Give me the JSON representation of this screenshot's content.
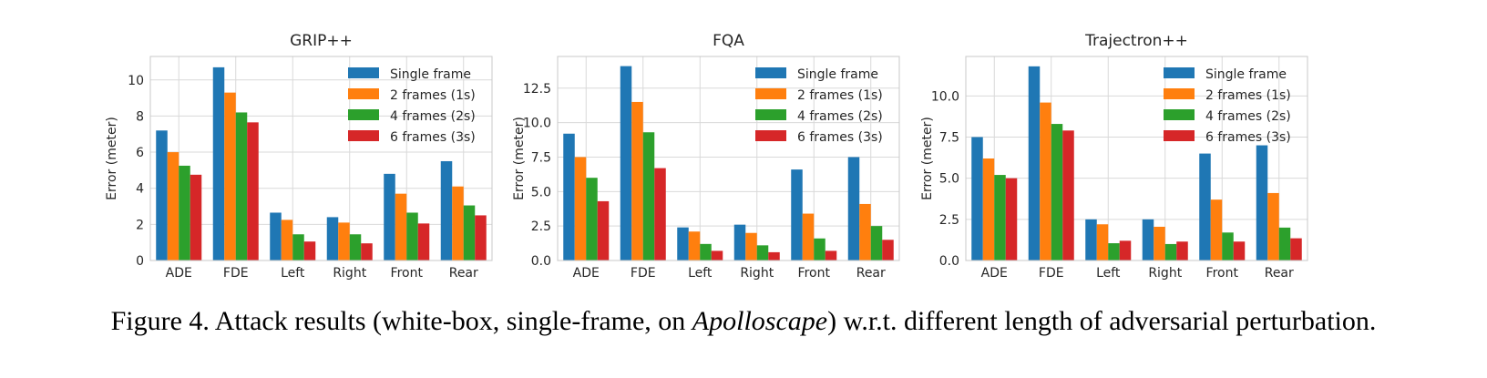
{
  "colors": {
    "series": [
      "#1f77b4",
      "#ff7f0e",
      "#2ca02c",
      "#d62728"
    ],
    "grid": "#d9d9d9",
    "axis_frame": "#c8c8c8",
    "text": "#262626"
  },
  "caption": {
    "label": "Figure 4.",
    "text_before": "Attack results (white-box, single-frame, on ",
    "emphasis": "Apolloscape",
    "text_after": ") w.r.t. different length of adversarial perturbation."
  },
  "chart_data": [
    {
      "type": "bar",
      "title": "GRIP++",
      "ylabel": "Error (meter)",
      "categories": [
        "ADE",
        "FDE",
        "Left",
        "Right",
        "Front",
        "Rear"
      ],
      "ylim": [
        0,
        11.3
      ],
      "yticks": [
        0,
        2,
        4,
        6,
        8,
        10
      ],
      "ytick_labels": [
        "0",
        "2",
        "4",
        "6",
        "8",
        "10"
      ],
      "grid": true,
      "legend_position": "top-right",
      "series": [
        {
          "name": "Single frame",
          "values": [
            7.2,
            10.7,
            2.65,
            2.4,
            4.8,
            5.5
          ]
        },
        {
          "name": "2 frames (1s)",
          "values": [
            6.0,
            9.3,
            2.25,
            2.1,
            3.7,
            4.1
          ]
        },
        {
          "name": "4 frames (2s)",
          "values": [
            5.25,
            8.2,
            1.45,
            1.45,
            2.65,
            3.05
          ]
        },
        {
          "name": "6 frames (3s)",
          "values": [
            4.75,
            7.65,
            1.05,
            0.95,
            2.05,
            2.5
          ]
        }
      ]
    },
    {
      "type": "bar",
      "title": "FQA",
      "ylabel": "Error (meter)",
      "categories": [
        "ADE",
        "FDE",
        "Left",
        "Right",
        "Front",
        "Rear"
      ],
      "ylim": [
        0,
        14.8
      ],
      "yticks": [
        0,
        2.5,
        5,
        7.5,
        10,
        12.5
      ],
      "ytick_labels": [
        "0.0",
        "2.5",
        "5.0",
        "7.5",
        "10.0",
        "12.5"
      ],
      "grid": true,
      "legend_position": "top-right",
      "series": [
        {
          "name": "Single frame",
          "values": [
            9.2,
            14.1,
            2.4,
            2.6,
            6.6,
            7.5
          ]
        },
        {
          "name": "2 frames (1s)",
          "values": [
            7.5,
            11.5,
            2.1,
            2.0,
            3.4,
            4.1
          ]
        },
        {
          "name": "4 frames (2s)",
          "values": [
            6.0,
            9.3,
            1.2,
            1.1,
            1.6,
            2.5
          ]
        },
        {
          "name": "6 frames (3s)",
          "values": [
            4.3,
            6.7,
            0.7,
            0.6,
            0.7,
            1.5
          ]
        }
      ]
    },
    {
      "type": "bar",
      "title": "Trajectron++",
      "ylabel": "Error (meter)",
      "categories": [
        "ADE",
        "FDE",
        "Left",
        "Right",
        "Front",
        "Rear"
      ],
      "ylim": [
        0,
        12.4
      ],
      "yticks": [
        0,
        2.5,
        5,
        7.5,
        10
      ],
      "ytick_labels": [
        "0.0",
        "2.5",
        "5.0",
        "7.5",
        "10.0"
      ],
      "grid": true,
      "legend_position": "top-right",
      "series": [
        {
          "name": "Single frame",
          "values": [
            7.5,
            11.8,
            2.5,
            2.5,
            6.5,
            7.0
          ]
        },
        {
          "name": "2 frames (1s)",
          "values": [
            6.2,
            9.6,
            2.2,
            2.05,
            3.7,
            4.1
          ]
        },
        {
          "name": "4 frames (2s)",
          "values": [
            5.2,
            8.3,
            1.05,
            1.0,
            1.7,
            2.0
          ]
        },
        {
          "name": "6 frames (3s)",
          "values": [
            5.0,
            7.9,
            1.2,
            1.15,
            1.15,
            1.35
          ]
        }
      ]
    }
  ]
}
